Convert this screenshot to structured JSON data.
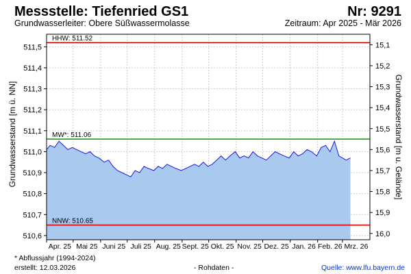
{
  "header": {
    "title": "Messstelle: Tiefenried GS1",
    "number": "Nr: 9291",
    "aquifer": "Grundwasserleiter:   Obere Süßwassermolasse",
    "period": "Zeitraum: Apr 2025 - Mär 2026"
  },
  "footer": {
    "footnote": "* Abflussjahr (1994-2024)",
    "created": "erstellt:  12.03.2026",
    "rawdata": "- Rohdaten -",
    "source": "Quelle: www.lfu.bayern.de"
  },
  "colors": {
    "area_fill": "#a9c9ef",
    "line": "#1a1ad6",
    "hhw": "#e00000",
    "nnw": "#e00000",
    "mw": "#1f9e1f",
    "grid": "#c8c8c8"
  },
  "chart_data": {
    "type": "area",
    "ylabel_left": "Grundwasserstand [m ü. NN]",
    "ylabel_right": "Grundwasserstand [m u. Gelände]",
    "ylim_left": [
      510.58,
      511.56
    ],
    "yticks_left": [
      "511,5",
      "511,4",
      "511,3",
      "511,2",
      "511,1",
      "511,0",
      "510,9",
      "510,8",
      "510,7",
      "510,6"
    ],
    "ytick_values_left": [
      511.5,
      511.4,
      511.3,
      511.2,
      511.1,
      511.0,
      510.9,
      510.8,
      510.7,
      510.6
    ],
    "yticks_right": [
      "15,1",
      "15,2",
      "15,3",
      "15,4",
      "15,5",
      "15,6",
      "15,7",
      "15,8",
      "15,9",
      "16,0"
    ],
    "ytick_values_right": [
      15.1,
      15.2,
      15.3,
      15.4,
      15.5,
      15.6,
      15.7,
      15.8,
      15.9,
      16.0
    ],
    "right_axis_ground_level": 526.61,
    "xticks": [
      "Apr. 25",
      "Mai 25",
      "Juni 25",
      "Juli 25",
      "Aug. 25",
      "Sept. 25",
      "Okt. 25",
      "Nov. 25",
      "Dez. 25",
      "Jan. 26",
      "Feb. 26",
      "Mrz. 26"
    ],
    "xlim": [
      "2025-04-01",
      "2026-04-01"
    ],
    "grid": true,
    "reference_lines": [
      {
        "label": "HHW: 511.52",
        "value": 511.52
      },
      {
        "label": "MW*: 511.06",
        "value": 511.06
      },
      {
        "label": "NNW: 510.65",
        "value": 510.65
      }
    ],
    "series": [
      {
        "x": [
          "2025-04-01",
          "2025-04-05",
          "2025-04-10",
          "2025-04-15",
          "2025-04-20",
          "2025-04-25",
          "2025-04-30",
          "2025-05-05",
          "2025-05-10",
          "2025-05-15",
          "2025-05-20",
          "2025-05-25",
          "2025-05-30",
          "2025-06-05",
          "2025-06-10",
          "2025-06-15",
          "2025-06-20",
          "2025-06-25",
          "2025-06-30",
          "2025-07-05",
          "2025-07-10",
          "2025-07-15",
          "2025-07-20",
          "2025-07-25",
          "2025-07-31",
          "2025-08-05",
          "2025-08-10",
          "2025-08-15",
          "2025-08-20",
          "2025-08-25",
          "2025-08-31",
          "2025-09-05",
          "2025-09-10",
          "2025-09-15",
          "2025-09-20",
          "2025-09-25",
          "2025-09-30",
          "2025-10-05",
          "2025-10-10",
          "2025-10-15",
          "2025-10-20",
          "2025-10-25",
          "2025-10-31",
          "2025-11-05",
          "2025-11-10",
          "2025-11-15",
          "2025-11-20",
          "2025-11-25",
          "2025-11-30",
          "2025-12-05",
          "2025-12-10",
          "2025-12-15",
          "2025-12-20",
          "2025-12-25",
          "2025-12-31",
          "2026-01-05",
          "2026-01-10",
          "2026-01-15",
          "2026-01-20",
          "2026-01-25",
          "2026-01-31",
          "2026-02-05",
          "2026-02-10",
          "2026-02-15",
          "2026-02-20",
          "2026-02-25",
          "2026-03-01",
          "2026-03-05",
          "2026-03-10"
        ],
        "y": [
          511.01,
          511.03,
          511.02,
          511.05,
          511.03,
          511.01,
          511.02,
          511.01,
          511.0,
          510.99,
          511.0,
          510.98,
          510.97,
          510.95,
          510.96,
          510.93,
          510.91,
          510.9,
          510.89,
          510.88,
          510.91,
          510.9,
          510.93,
          510.92,
          510.91,
          510.93,
          510.92,
          510.94,
          510.93,
          510.92,
          510.91,
          510.92,
          510.93,
          510.94,
          510.93,
          510.95,
          510.93,
          510.94,
          510.96,
          510.98,
          510.96,
          510.98,
          511.0,
          510.97,
          510.98,
          510.97,
          511.0,
          510.98,
          510.97,
          510.96,
          510.98,
          511.0,
          510.99,
          510.98,
          510.97,
          511.0,
          510.98,
          510.99,
          511.01,
          511.0,
          510.98,
          511.02,
          511.03,
          511.0,
          511.05,
          510.98,
          510.97,
          510.96,
          510.97
        ]
      }
    ]
  }
}
